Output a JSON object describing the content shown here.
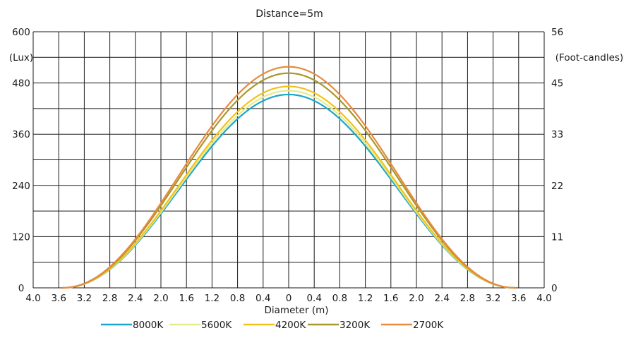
{
  "chart_data": {
    "type": "line",
    "title": "Distance=5m",
    "xlabel": "Diameter (m)",
    "ylabel_left": "(Lux)",
    "ylabel_right": "(Foot-candles)",
    "x_tick_labels": [
      "4.0",
      "3.6",
      "3.2",
      "2.8",
      "2.4",
      "2.0",
      "1.6",
      "1.2",
      "0.8",
      "0.4",
      "0",
      "0.4",
      "0.8",
      "1.2",
      "1.6",
      "2.0",
      "2.4",
      "2.8",
      "3.2",
      "3.6",
      "4.0"
    ],
    "x_tick_values": [
      -4.0,
      -3.6,
      -3.2,
      -2.8,
      -2.4,
      -2.0,
      -1.6,
      -1.2,
      -0.8,
      -0.4,
      0,
      0.4,
      0.8,
      1.2,
      1.6,
      2.0,
      2.4,
      2.8,
      3.2,
      3.6,
      4.0
    ],
    "xlim": [
      -4.0,
      4.0
    ],
    "ylim": [
      0,
      600
    ],
    "y_left_ticks": [
      {
        "value": 0,
        "label": "0"
      },
      {
        "value": 120,
        "label": "120"
      },
      {
        "value": 240,
        "label": "240"
      },
      {
        "value": 360,
        "label": "360"
      },
      {
        "value": 480,
        "label": "480"
      },
      {
        "value": 600,
        "label": "600"
      }
    ],
    "y_right_ticks": [
      {
        "value": 0,
        "label": "0"
      },
      {
        "value": 120,
        "label": "11"
      },
      {
        "value": 240,
        "label": "22"
      },
      {
        "value": 360,
        "label": "33"
      },
      {
        "value": 480,
        "label": "45"
      },
      {
        "value": 600,
        "label": "56"
      }
    ],
    "y_gridlines": [
      0,
      60,
      120,
      180,
      240,
      300,
      360,
      420,
      480,
      540,
      600
    ],
    "grid": true,
    "legend_position": "bottom",
    "series": [
      {
        "name": "8000K",
        "color": "#1aa6cf",
        "peak": 453,
        "edge": 3.55
      },
      {
        "name": "5600K",
        "color": "#e6ec8a",
        "peak": 462,
        "edge": 3.55
      },
      {
        "name": "4200K",
        "color": "#f2c21b",
        "peak": 472,
        "edge": 3.55
      },
      {
        "name": "3200K",
        "color": "#a8982e",
        "peak": 503,
        "edge": 3.55
      },
      {
        "name": "2700K",
        "color": "#e98a3c",
        "peak": 518,
        "edge": 3.55
      }
    ]
  }
}
